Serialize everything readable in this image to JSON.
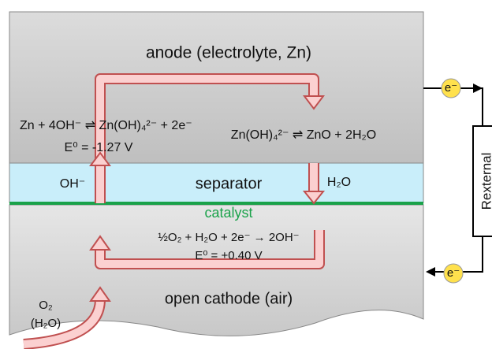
{
  "anode": {
    "title": "anode (electrolyte, Zn)",
    "reaction": "Zn + 4OH⁻ ⇌ Zn(OH)₄²⁻ + 2e⁻",
    "potential": "E⁰ = -1.27 V",
    "reaction2": "Zn(OH)₄²⁻ ⇌ ZnO + 2H₂O"
  },
  "separator": {
    "title": "separator",
    "left_ion": "OH⁻",
    "right_ion": "H₂O"
  },
  "catalyst": "catalyst",
  "cathode": {
    "reaction": "½O₂ + H₂O + 2e⁻ → 2OH⁻",
    "potential": "E⁰ = +0.40 V",
    "title": "open cathode (air)",
    "gas": "O₂",
    "gas2": "(H₂O)"
  },
  "circuit": {
    "electron_top": "e⁻",
    "electron_bottom": "e⁻",
    "resistor": "Rexternal"
  }
}
